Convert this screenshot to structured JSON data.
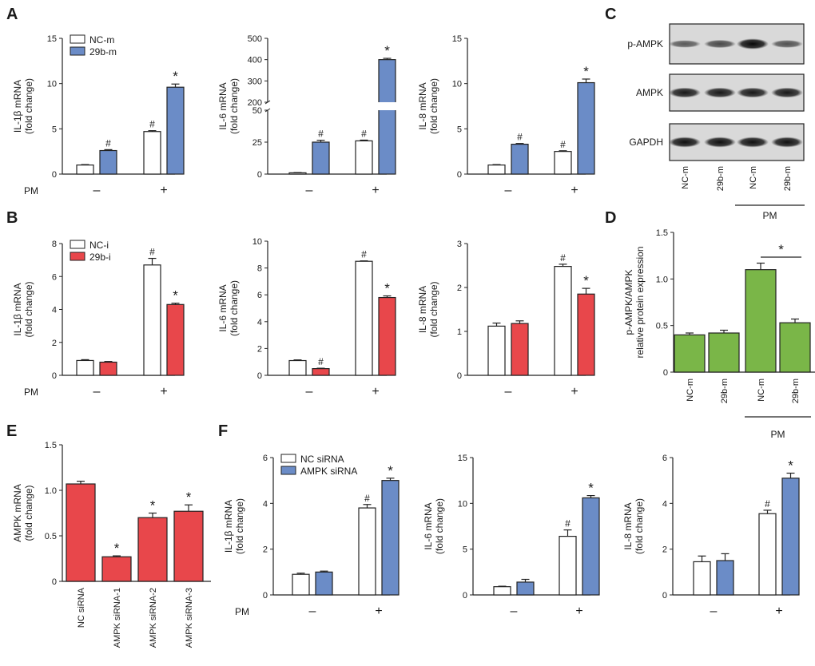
{
  "colors": {
    "white": "#ffffff",
    "blue": "#6b8cc7",
    "red": "#e8474b",
    "green": "#7ab648",
    "axis": "#222222"
  },
  "panel_letters": {
    "A": "A",
    "B": "B",
    "C": "C",
    "D": "D",
    "E": "E",
    "F": "F"
  },
  "pm_label": "PM",
  "pm_signs": [
    "–",
    "+"
  ],
  "chart_data": [
    {
      "id": "A1",
      "type": "bar",
      "ylabel": [
        "IL-1β mRNA",
        "(fold change)"
      ],
      "ylim": [
        0,
        15
      ],
      "ticks": [
        0,
        5,
        10,
        15
      ],
      "categories": [
        "–",
        "+"
      ],
      "series": [
        {
          "name": "NC-m",
          "values": [
            1,
            4.7
          ],
          "errors": [
            0.05,
            0.1
          ],
          "marks": [
            "",
            "#"
          ]
        },
        {
          "name": "29b-m",
          "values": [
            2.6,
            9.6
          ],
          "errors": [
            0.1,
            0.35
          ],
          "marks": [
            "#",
            "*"
          ]
        }
      ],
      "legend": [
        "NC-m",
        "29b-m"
      ],
      "pm": true
    },
    {
      "id": "A2",
      "type": "bar",
      "ylabel": [
        "IL-6 mRNA",
        "(fold change)"
      ],
      "broken_axis": true,
      "ylim_lower": [
        0,
        50
      ],
      "ylim_upper": [
        200,
        500
      ],
      "ticks_lower": [
        0,
        25,
        50
      ],
      "ticks_upper": [
        200,
        300,
        400,
        500
      ],
      "categories": [
        "–",
        "+"
      ],
      "series": [
        {
          "name": "NC-m",
          "values": [
            1,
            26
          ],
          "errors": [
            0.2,
            0.6
          ],
          "marks": [
            "",
            "#"
          ]
        },
        {
          "name": "29b-m",
          "values": [
            25,
            400
          ],
          "errors": [
            1.5,
            6
          ],
          "marks": [
            "#",
            "*"
          ]
        }
      ]
    },
    {
      "id": "A3",
      "type": "bar",
      "ylabel": [
        "IL-8 mRNA",
        "(fold change)"
      ],
      "ylim": [
        0,
        15
      ],
      "ticks": [
        0,
        5,
        10,
        15
      ],
      "categories": [
        "–",
        "+"
      ],
      "series": [
        {
          "name": "NC-m",
          "values": [
            1,
            2.5
          ],
          "errors": [
            0.05,
            0.08
          ],
          "marks": [
            "",
            "#"
          ]
        },
        {
          "name": "29b-m",
          "values": [
            3.3,
            10.1
          ],
          "errors": [
            0.08,
            0.4
          ],
          "marks": [
            "#",
            "*"
          ]
        }
      ]
    },
    {
      "id": "B1",
      "type": "bar",
      "ylabel": [
        "IL-1β mRNA",
        "(fold change)"
      ],
      "ylim": [
        0,
        8
      ],
      "ticks": [
        0,
        2,
        4,
        6,
        8
      ],
      "categories": [
        "–",
        "+"
      ],
      "series": [
        {
          "name": "NC-i",
          "values": [
            0.9,
            6.7
          ],
          "errors": [
            0.05,
            0.4
          ],
          "marks": [
            "",
            "#"
          ]
        },
        {
          "name": "29b-i",
          "values": [
            0.8,
            4.3
          ],
          "errors": [
            0.04,
            0.08
          ],
          "marks": [
            "",
            "*"
          ]
        }
      ],
      "legend": [
        "NC-i",
        "29b-i"
      ],
      "pm": true
    },
    {
      "id": "B2",
      "type": "bar",
      "ylabel": [
        "IL-6 mRNA",
        "(fold change)"
      ],
      "ylim": [
        0,
        10
      ],
      "ticks": [
        0,
        2,
        4,
        6,
        8,
        10
      ],
      "categories": [
        "–",
        "+"
      ],
      "series": [
        {
          "name": "NC-i",
          "values": [
            1.1,
            8.5
          ],
          "errors": [
            0.05,
            0.03
          ],
          "marks": [
            "",
            "#"
          ]
        },
        {
          "name": "29b-i",
          "values": [
            0.5,
            5.8
          ],
          "errors": [
            0.03,
            0.12
          ],
          "marks": [
            "#",
            "*"
          ]
        }
      ]
    },
    {
      "id": "B3",
      "type": "bar",
      "ylabel": [
        "IL-8 mRNA",
        "(fold change)"
      ],
      "ylim": [
        0,
        3
      ],
      "ticks": [
        0,
        1,
        2,
        3
      ],
      "categories": [
        "–",
        "+"
      ],
      "series": [
        {
          "name": "NC-i",
          "values": [
            1.12,
            2.48
          ],
          "errors": [
            0.07,
            0.05
          ],
          "marks": [
            "",
            "#"
          ]
        },
        {
          "name": "29b-i",
          "values": [
            1.18,
            1.85
          ],
          "errors": [
            0.06,
            0.13
          ],
          "marks": [
            "",
            "*"
          ]
        }
      ]
    },
    {
      "id": "D",
      "type": "bar",
      "ylabel": [
        "p-AMPK/AMPK",
        "relative protein expression"
      ],
      "ylim": [
        0,
        1.5
      ],
      "ticks": [
        0,
        0.5,
        1.0,
        1.5
      ],
      "categories": [
        "NC-m",
        "29b-m",
        "NC-m",
        "29b-m"
      ],
      "values": [
        0.4,
        0.42,
        1.1,
        0.53
      ],
      "errors": [
        0.02,
        0.03,
        0.07,
        0.04
      ],
      "bracket": {
        "from": 2,
        "to": 3,
        "label": "*"
      },
      "group_label": "PM"
    },
    {
      "id": "E",
      "type": "bar",
      "ylabel": [
        "AMPK mRNA",
        "(fold change)"
      ],
      "ylim": [
        0,
        1.5
      ],
      "ticks": [
        0,
        0.5,
        1.0,
        1.5
      ],
      "categories": [
        "NC siRNA",
        "AMPK siRNA-1",
        "AMPK siRNA-2",
        "AMPK siRNA-3"
      ],
      "values": [
        1.07,
        0.27,
        0.7,
        0.77
      ],
      "errors": [
        0.03,
        0.01,
        0.05,
        0.07
      ],
      "marks": [
        "",
        "*",
        "*",
        "*"
      ]
    },
    {
      "id": "F1",
      "type": "bar",
      "ylabel": [
        "IL-1β mRNA",
        "(fold change)"
      ],
      "ylim": [
        0,
        6
      ],
      "ticks": [
        0,
        2,
        4,
        6
      ],
      "categories": [
        "–",
        "+"
      ],
      "series": [
        {
          "name": "NC siRNA",
          "values": [
            0.9,
            3.8
          ],
          "errors": [
            0.05,
            0.15
          ],
          "marks": [
            "",
            "#"
          ]
        },
        {
          "name": "AMPK siRNA",
          "values": [
            1.0,
            5.0
          ],
          "errors": [
            0.04,
            0.1
          ],
          "marks": [
            "",
            "*"
          ]
        }
      ],
      "legend": [
        "NC siRNA",
        "AMPK siRNA"
      ],
      "pm": true
    },
    {
      "id": "F2",
      "type": "bar",
      "ylabel": [
        "IL-6 mRNA",
        "(fold change)"
      ],
      "ylim": [
        0,
        15
      ],
      "ticks": [
        0,
        5,
        10,
        15
      ],
      "categories": [
        "–",
        "+"
      ],
      "series": [
        {
          "name": "NC siRNA",
          "values": [
            0.9,
            6.4
          ],
          "errors": [
            0.05,
            0.7
          ],
          "marks": [
            "",
            "#"
          ]
        },
        {
          "name": "AMPK siRNA",
          "values": [
            1.4,
            10.6
          ],
          "errors": [
            0.3,
            0.25
          ],
          "marks": [
            "",
            "*"
          ]
        }
      ]
    },
    {
      "id": "F3",
      "type": "bar",
      "ylabel": [
        "IL-8 mRNA",
        "(fold change)"
      ],
      "ylim": [
        0,
        6
      ],
      "ticks": [
        0,
        2,
        4,
        6
      ],
      "categories": [
        "–",
        "+"
      ],
      "series": [
        {
          "name": "NC siRNA",
          "values": [
            1.45,
            3.55
          ],
          "errors": [
            0.25,
            0.15
          ],
          "marks": [
            "",
            "#"
          ]
        },
        {
          "name": "AMPK siRNA",
          "values": [
            1.5,
            5.1
          ],
          "errors": [
            0.3,
            0.22
          ],
          "marks": [
            "",
            "*"
          ]
        }
      ]
    }
  ],
  "western_blot": {
    "rows": [
      "p-AMPK",
      "AMPK",
      "GAPDH"
    ],
    "lanes": [
      "NC-m",
      "29b-m",
      "NC-m",
      "29b-m"
    ],
    "group_label": "PM",
    "intensity": [
      [
        0.45,
        0.55,
        0.95,
        0.5
      ],
      [
        0.85,
        0.85,
        0.85,
        0.85
      ],
      [
        0.9,
        0.9,
        0.9,
        0.9
      ]
    ]
  }
}
